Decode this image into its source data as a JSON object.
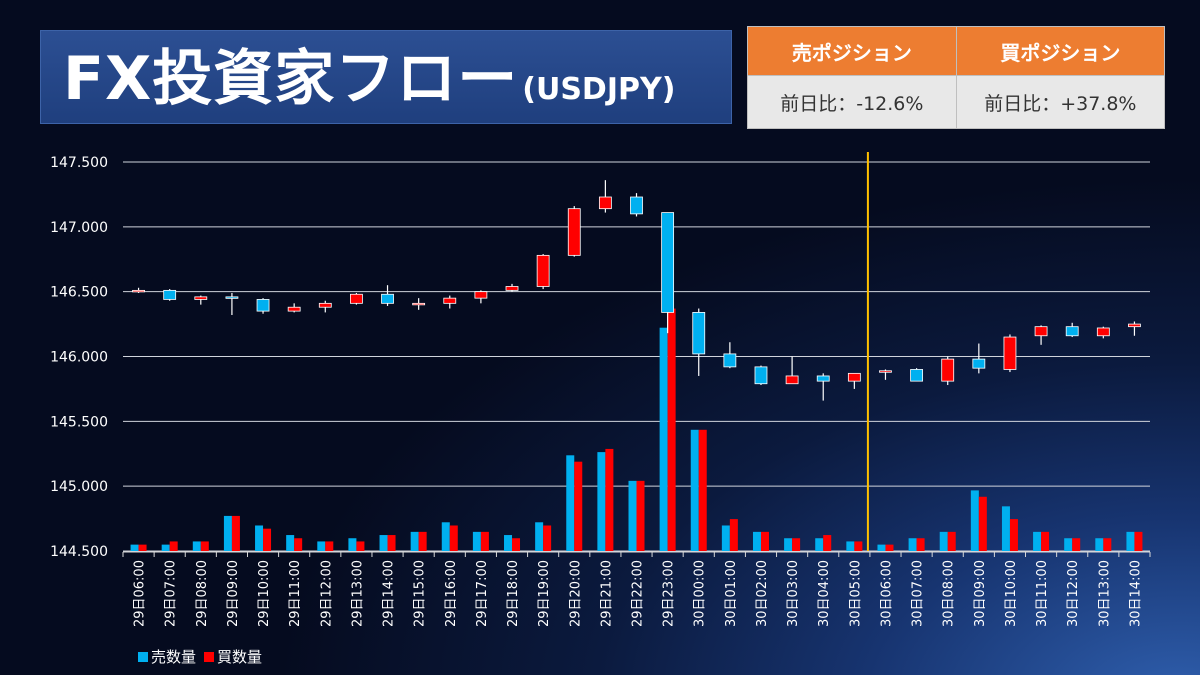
{
  "header": {
    "title_main": "FX投資家フロー",
    "title_sub": "(USDJPY)"
  },
  "positions": {
    "sell_label": "売ポジション",
    "buy_label": "買ポジション",
    "sell_change": "前日比：-12.6%",
    "buy_change": "前日比：+37.8%"
  },
  "legend": {
    "sell_label": "売数量",
    "buy_label": "買数量"
  },
  "colors": {
    "up": "#ff0000",
    "down": "#00b0f0",
    "sell_volume": "#00b0f0",
    "buy_volume": "#ff0000",
    "marker": "#ffc000",
    "header_orange": "#ed7d31"
  },
  "chart_data": {
    "type": "candlestick",
    "title": "",
    "y_ticks": [
      "144.500",
      "145.000",
      "145.500",
      "146.000",
      "146.500",
      "147.000",
      "147.500"
    ],
    "ylim": [
      144.5,
      147.5
    ],
    "grid": true,
    "vertical_marker_after": "30日05:00",
    "categories": [
      "29日06:00",
      "29日07:00",
      "29日08:00",
      "29日09:00",
      "29日10:00",
      "29日11:00",
      "29日12:00",
      "29日13:00",
      "29日14:00",
      "29日15:00",
      "29日16:00",
      "29日17:00",
      "29日18:00",
      "29日19:00",
      "29日20:00",
      "29日21:00",
      "29日22:00",
      "29日23:00",
      "30日00:00",
      "30日01:00",
      "30日02:00",
      "30日03:00",
      "30日04:00",
      "30日05:00",
      "30日06:00",
      "30日07:00",
      "30日08:00",
      "30日09:00",
      "30日10:00",
      "30日11:00",
      "30日12:00",
      "30日13:00",
      "30日14:00"
    ],
    "ohlc": [
      [
        146.5,
        146.53,
        146.49,
        146.51
      ],
      [
        146.51,
        146.52,
        146.43,
        146.44
      ],
      [
        146.44,
        146.47,
        146.4,
        146.46
      ],
      [
        146.46,
        146.49,
        146.32,
        146.45
      ],
      [
        146.44,
        146.45,
        146.33,
        146.35
      ],
      [
        146.35,
        146.41,
        146.34,
        146.38
      ],
      [
        146.38,
        146.43,
        146.34,
        146.41
      ],
      [
        146.41,
        146.49,
        146.4,
        146.48
      ],
      [
        146.48,
        146.55,
        146.39,
        146.41
      ],
      [
        146.41,
        146.45,
        146.36,
        146.41
      ],
      [
        146.41,
        146.47,
        146.37,
        146.45
      ],
      [
        146.45,
        146.51,
        146.41,
        146.5
      ],
      [
        146.51,
        146.56,
        146.5,
        146.54
      ],
      [
        146.54,
        146.79,
        146.52,
        146.78
      ],
      [
        146.78,
        147.16,
        146.77,
        147.14
      ],
      [
        147.14,
        147.36,
        147.11,
        147.23
      ],
      [
        147.23,
        147.26,
        147.08,
        147.1
      ],
      [
        147.11,
        147.11,
        146.18,
        146.34
      ],
      [
        146.34,
        146.37,
        145.85,
        146.02
      ],
      [
        146.02,
        146.11,
        145.91,
        145.92
      ],
      [
        145.92,
        145.93,
        145.78,
        145.79
      ],
      [
        145.79,
        146.0,
        145.79,
        145.85
      ],
      [
        145.85,
        145.87,
        145.66,
        145.81
      ],
      [
        145.81,
        145.87,
        145.75,
        145.87
      ],
      [
        145.88,
        145.9,
        145.82,
        145.89
      ],
      [
        145.9,
        145.91,
        145.81,
        145.81
      ],
      [
        145.81,
        146.0,
        145.78,
        145.98
      ],
      [
        145.98,
        146.1,
        145.87,
        145.91
      ],
      [
        145.9,
        146.17,
        145.88,
        146.15
      ],
      [
        146.16,
        146.24,
        146.09,
        146.23
      ],
      [
        146.23,
        146.26,
        146.15,
        146.16
      ],
      [
        146.16,
        146.23,
        146.14,
        146.22
      ],
      [
        146.23,
        146.27,
        146.16,
        146.25
      ]
    ],
    "volume_series": [
      {
        "name": "売数量",
        "values": [
          0.02,
          0.02,
          0.03,
          0.11,
          0.08,
          0.05,
          0.03,
          0.04,
          0.05,
          0.06,
          0.09,
          0.06,
          0.05,
          0.09,
          0.3,
          0.31,
          0.22,
          0.7,
          0.38,
          0.08,
          0.06,
          0.04,
          0.04,
          0.03,
          0.02,
          0.04,
          0.06,
          0.19,
          0.14,
          0.06,
          0.04,
          0.04,
          0.06
        ]
      },
      {
        "name": "買数量",
        "values": [
          0.02,
          0.03,
          0.03,
          0.11,
          0.07,
          0.04,
          0.03,
          0.03,
          0.05,
          0.06,
          0.08,
          0.06,
          0.04,
          0.08,
          0.28,
          0.32,
          0.22,
          0.76,
          0.38,
          0.1,
          0.06,
          0.04,
          0.05,
          0.03,
          0.02,
          0.04,
          0.06,
          0.17,
          0.1,
          0.06,
          0.04,
          0.04,
          0.06
        ]
      }
    ]
  }
}
